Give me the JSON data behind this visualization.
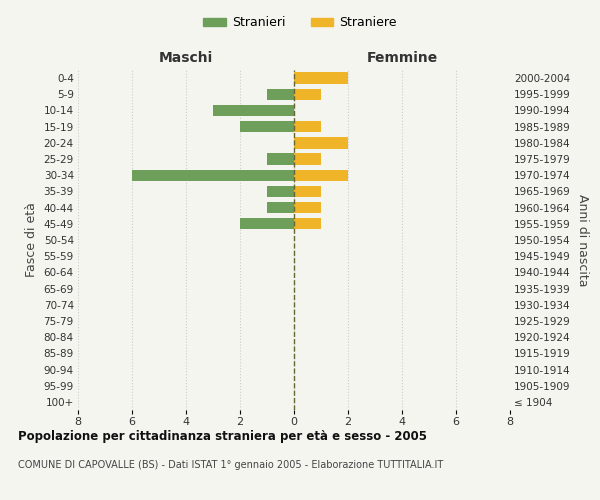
{
  "age_groups": [
    "100+",
    "95-99",
    "90-94",
    "85-89",
    "80-84",
    "75-79",
    "70-74",
    "65-69",
    "60-64",
    "55-59",
    "50-54",
    "45-49",
    "40-44",
    "35-39",
    "30-34",
    "25-29",
    "20-24",
    "15-19",
    "10-14",
    "5-9",
    "0-4"
  ],
  "birth_years": [
    "≤ 1904",
    "1905-1909",
    "1910-1914",
    "1915-1919",
    "1920-1924",
    "1925-1929",
    "1930-1934",
    "1935-1939",
    "1940-1944",
    "1945-1949",
    "1950-1954",
    "1955-1959",
    "1960-1964",
    "1965-1969",
    "1970-1974",
    "1975-1979",
    "1980-1984",
    "1985-1989",
    "1990-1994",
    "1995-1999",
    "2000-2004"
  ],
  "males": [
    0,
    0,
    0,
    0,
    0,
    0,
    0,
    0,
    0,
    0,
    0,
    2,
    1,
    1,
    6,
    1,
    0,
    2,
    3,
    1,
    0
  ],
  "females": [
    0,
    0,
    0,
    0,
    0,
    0,
    0,
    0,
    0,
    0,
    0,
    1,
    1,
    1,
    2,
    1,
    2,
    1,
    0,
    1,
    2
  ],
  "male_color": "#6d9f5b",
  "female_color": "#f0b429",
  "title_main": "Popolazione per cittadinanza straniera per età e sesso - 2005",
  "title_sub": "COMUNE DI CAPOVALLE (BS) - Dati ISTAT 1° gennaio 2005 - Elaborazione TUTTITALIA.IT",
  "ylabel_left": "Fasce di età",
  "ylabel_right": "Anni di nascita",
  "xlabel_maschi": "Maschi",
  "xlabel_femmine": "Femmine",
  "legend_stranieri": "Stranieri",
  "legend_straniere": "Straniere",
  "xlim": 8,
  "background_color": "#f5f5f0",
  "plot_bg": "#f5f5f0",
  "grid_color": "#cccccc"
}
